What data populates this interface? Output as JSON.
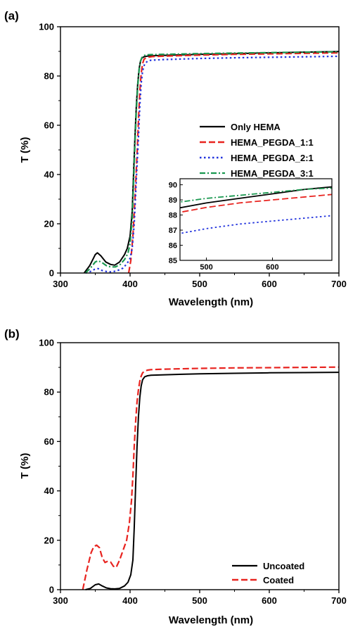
{
  "chart_data": [
    {
      "type": "line",
      "panel_label": "(a)",
      "xlabel": "Wavelength (nm)",
      "ylabel": "T (%)",
      "xlim": [
        300,
        700
      ],
      "ylim": [
        0,
        100
      ],
      "xticks": [
        300,
        400,
        500,
        600,
        700
      ],
      "yticks": [
        0,
        20,
        40,
        60,
        80,
        100
      ],
      "legend_position": "middle-right",
      "series": [
        {
          "name": "Only HEMA",
          "color": "#000000",
          "dash": "solid",
          "x": [
            334,
            342,
            350,
            353,
            358,
            365,
            372,
            378,
            385,
            392,
            396,
            400,
            403,
            405,
            407,
            409,
            411,
            413,
            415,
            417,
            420,
            425,
            430,
            450,
            500,
            550,
            600,
            650,
            700
          ],
          "y": [
            0,
            3,
            7.5,
            8.2,
            7,
            4.5,
            3.5,
            3.2,
            4.5,
            7.5,
            10,
            15,
            25,
            40,
            55,
            68,
            77,
            83,
            86,
            87.3,
            87.8,
            88.1,
            88.2,
            88.4,
            88.8,
            89.1,
            89.4,
            89.7,
            89.9
          ]
        },
        {
          "name": "HEMA_PEGDA_1:1",
          "color": "#e8231f",
          "dash": "long-dash",
          "x": [
            398,
            401,
            404,
            407,
            410,
            412,
            414,
            416,
            418,
            420,
            423,
            427,
            432,
            450,
            500,
            550,
            600,
            650,
            700
          ],
          "y": [
            0,
            5,
            15,
            30,
            48,
            62,
            74,
            81,
            85,
            86.8,
            87.4,
            87.7,
            87.9,
            88.1,
            88.5,
            88.8,
            89.0,
            89.2,
            89.4
          ]
        },
        {
          "name": "HEMA_PEGDA_2:1",
          "color": "#2233dd",
          "dash": "dotted",
          "x": [
            336,
            342,
            349,
            354,
            360,
            368,
            375,
            382,
            390,
            396,
            400,
            403,
            406,
            409,
            412,
            414,
            416,
            418,
            421,
            425,
            430,
            450,
            500,
            550,
            600,
            650,
            700
          ],
          "y": [
            0,
            0.5,
            1.5,
            1.8,
            1,
            0.5,
            0.5,
            1,
            2,
            4,
            6,
            10,
            20,
            38,
            55,
            68,
            77,
            82,
            85,
            86,
            86.4,
            86.7,
            87.1,
            87.4,
            87.6,
            87.8,
            88.0
          ]
        },
        {
          "name": "HEMA_PEGDA_3:1",
          "color": "#1a9850",
          "dash": "dash-dot",
          "x": [
            336,
            343,
            350,
            354,
            360,
            366,
            372,
            379,
            386,
            392,
            397,
            400,
            403,
            405,
            407,
            409,
            411,
            413,
            415,
            417,
            420,
            425,
            430,
            450,
            500,
            550,
            600,
            650,
            700
          ],
          "y": [
            0,
            2,
            4.5,
            5,
            4.2,
            3,
            2.5,
            2.5,
            3.5,
            5.5,
            8,
            12,
            22,
            36,
            52,
            66,
            76,
            82.5,
            86,
            87.5,
            88.3,
            88.6,
            88.7,
            88.8,
            89.1,
            89.3,
            89.5,
            89.7,
            89.8
          ]
        }
      ],
      "inset": {
        "xlim": [
          460,
          690
        ],
        "ylim": [
          85,
          90.4
        ],
        "xticks": [
          500,
          600
        ],
        "yticks": [
          85,
          86,
          87,
          88,
          89,
          90
        ]
      }
    },
    {
      "type": "line",
      "panel_label": "(b)",
      "xlabel": "Wavelength (nm)",
      "ylabel": "T (%)",
      "xlim": [
        300,
        700
      ],
      "ylim": [
        0,
        100
      ],
      "xticks": [
        300,
        400,
        500,
        600,
        700
      ],
      "yticks": [
        0,
        20,
        40,
        60,
        80,
        100
      ],
      "legend_position": "bottom-right",
      "series": [
        {
          "name": "Uncoated",
          "color": "#000000",
          "dash": "solid",
          "x": [
            336,
            343,
            350,
            355,
            360,
            366,
            372,
            378,
            385,
            392,
            397,
            401,
            404,
            406,
            408,
            410,
            412,
            414,
            416,
            418,
            421,
            425,
            430,
            450,
            500,
            550,
            600,
            650,
            700
          ],
          "y": [
            0,
            0.5,
            2,
            2.3,
            1.5,
            0.7,
            0.4,
            0.3,
            0.5,
            1.5,
            3,
            6,
            12,
            25,
            42,
            58,
            70,
            78,
            82.5,
            85,
            86.2,
            86.6,
            86.8,
            87,
            87.4,
            87.6,
            87.8,
            87.9,
            88.0
          ]
        },
        {
          "name": "Coated",
          "color": "#e8231f",
          "dash": "long-dash",
          "x": [
            332,
            338,
            344,
            348,
            352,
            356,
            360,
            364,
            368,
            372,
            376,
            380,
            385,
            390,
            395,
            399,
            402,
            404,
            406,
            408,
            410,
            412,
            414,
            416,
            418,
            421,
            425,
            430,
            450,
            500,
            550,
            600,
            650,
            700
          ],
          "y": [
            0,
            8,
            15,
            17.5,
            18,
            17,
            13,
            11,
            11.5,
            11.2,
            9.5,
            9,
            12,
            16,
            20,
            27,
            36,
            46,
            58,
            68,
            76,
            81,
            84.5,
            86.5,
            87.8,
            88.5,
            88.9,
            89.1,
            89.3,
            89.6,
            89.8,
            89.9,
            90.0,
            90.1
          ]
        }
      ]
    }
  ]
}
